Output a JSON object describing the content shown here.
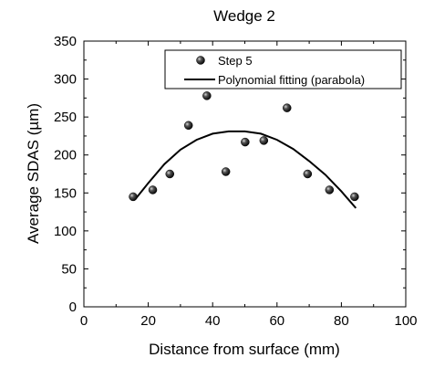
{
  "chart_data": {
    "type": "scatter",
    "title": "Wedge 2",
    "xlabel": "Distance from surface (mm)",
    "ylabel": "Average SDAS (µm)",
    "xlim": [
      0,
      100
    ],
    "ylim": [
      0,
      350
    ],
    "xticks": [
      0,
      20,
      40,
      60,
      80,
      100
    ],
    "yticks": [
      0,
      50,
      100,
      150,
      200,
      250,
      300,
      350
    ],
    "legend": {
      "placement": "top-right",
      "entries": [
        "Step 5",
        "Polynomial fitting (parabola)"
      ]
    },
    "series": [
      {
        "name": "Step 5",
        "kind": "points",
        "x": [
          15.3,
          21.4,
          26.7,
          32.5,
          38.2,
          44.1,
          50.1,
          55.9,
          63.1,
          69.5,
          76.3,
          84.1
        ],
        "y": [
          145,
          154,
          175,
          239,
          278,
          178,
          217,
          219,
          262,
          175,
          154,
          145
        ]
      },
      {
        "name": "Polynomial fitting (parabola)",
        "kind": "line",
        "x": [
          16.2,
          20,
          25,
          30,
          35,
          40,
          45,
          50,
          55,
          60,
          65,
          70,
          75,
          80,
          84.5
        ],
        "y": [
          143,
          163,
          188,
          207,
          220,
          228,
          231,
          231,
          228,
          220,
          208,
          192,
          174,
          152,
          130
        ]
      }
    ]
  }
}
